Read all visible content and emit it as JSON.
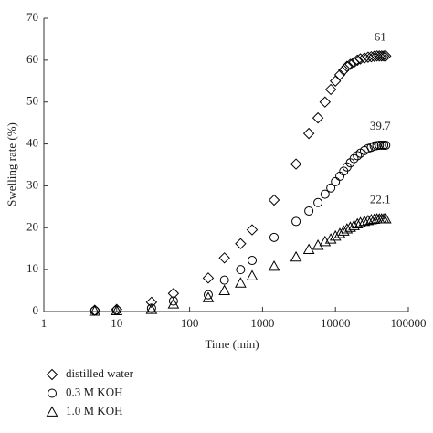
{
  "chart_data": {
    "type": "scatter",
    "xlabel": "Time (min)",
    "ylabel": "Swelling rate (%)",
    "xscale": "log",
    "xlim": [
      1,
      100000
    ],
    "xticks": [
      1,
      10,
      100,
      1000,
      10000,
      100000
    ],
    "ylim": [
      0,
      70
    ],
    "yticks": [
      0,
      10,
      20,
      30,
      40,
      50,
      60,
      70
    ],
    "grid": false,
    "legend": "below",
    "x": [
      5,
      10,
      30,
      60,
      180,
      300,
      500,
      720,
      1440,
      2880,
      4320,
      5760,
      7200,
      8640,
      10000,
      11500,
      13000,
      14400,
      16000,
      18000,
      20000,
      22000,
      25000,
      28000,
      31000,
      34000,
      37000,
      40000,
      43000,
      46000,
      49000
    ],
    "series": [
      {
        "name": "distilled water",
        "marker": "diamond",
        "color": "#000000",
        "values": [
          0.3,
          0.5,
          2.2,
          4.3,
          8,
          12.8,
          16.2,
          19.5,
          26.6,
          35.2,
          42.5,
          46.2,
          50,
          53,
          55,
          56.5,
          57.6,
          58.5,
          59,
          59.5,
          60,
          60.3,
          60.5,
          60.7,
          60.8,
          60.9,
          61,
          61,
          61,
          61,
          61
        ]
      },
      {
        "name": "0.3 M KOH",
        "marker": "circle",
        "color": "#000000",
        "values": [
          0.2,
          0.3,
          0.8,
          2.5,
          4,
          7.5,
          10,
          12.2,
          17.7,
          21.5,
          24,
          26,
          28,
          29.5,
          31,
          32.3,
          33.5,
          34.5,
          35.5,
          36.5,
          37.2,
          37.8,
          38.4,
          38.9,
          39.2,
          39.5,
          39.6,
          39.7,
          39.7,
          39.7,
          39.7
        ]
      },
      {
        "name": "1.0 M KOH",
        "marker": "triangle",
        "color": "#000000",
        "values": [
          0.1,
          0.2,
          0.5,
          1.8,
          3.3,
          5,
          6.8,
          8.5,
          10.8,
          13,
          14.8,
          15.8,
          16.7,
          17.3,
          18,
          18.6,
          19.2,
          19.7,
          20.1,
          20.5,
          20.9,
          21.2,
          21.5,
          21.7,
          21.9,
          22,
          22.1,
          22.1,
          22.1,
          22.1,
          22.1
        ]
      }
    ],
    "annotations": [
      "61",
      "39.7",
      "22.1"
    ]
  }
}
